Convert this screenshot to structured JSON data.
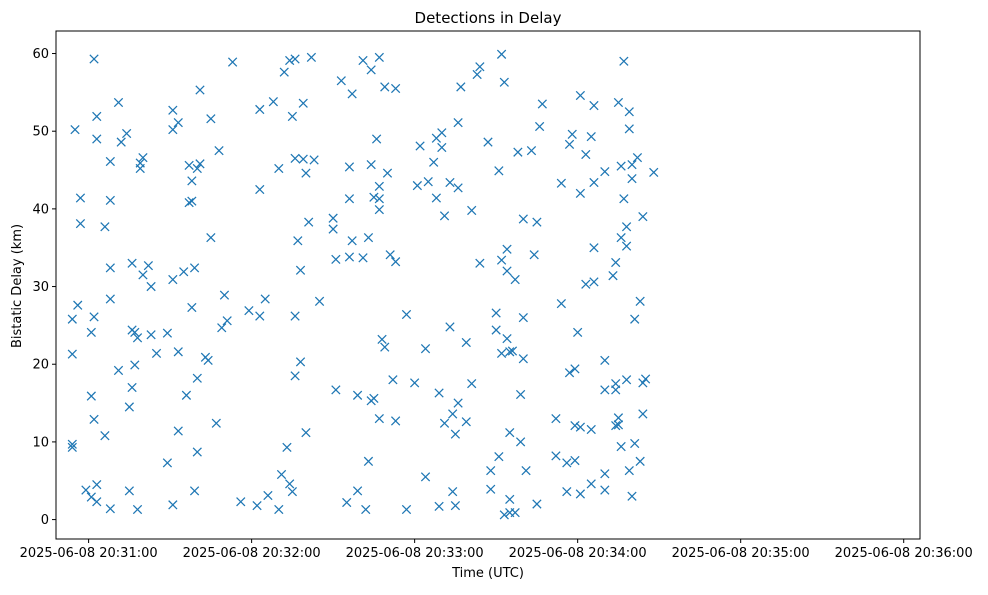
{
  "chart_data": {
    "type": "scatter",
    "title": "Detections in Delay",
    "xlabel": "Time (UTC)",
    "ylabel": "Bistatic Delay (km)",
    "marker": "x",
    "color": "#1f77b4",
    "grid": false,
    "legend": "none",
    "xlim": [
      "2025-06-08 20:30:48",
      "2025-06-08 20:36:06"
    ],
    "ylim": [
      -2.5,
      62.9
    ],
    "x_ticks": [
      "2025-06-08 20:31:00",
      "2025-06-08 20:32:00",
      "2025-06-08 20:33:00",
      "2025-06-08 20:34:00",
      "2025-06-08 20:35:00",
      "2025-06-08 20:36:00"
    ],
    "x_tick_labels": [
      "2025-06-08 20:31:00",
      "2025-06-08 20:32:00",
      "2025-06-08 20:33:00",
      "2025-06-08 20:34:00",
      "2025-06-08 20:35:00",
      "2025-06-08 20:36:00"
    ],
    "y_ticks": [
      0,
      10,
      20,
      30,
      40,
      50,
      60
    ],
    "points": [
      [
        "2025-06-08 20:30:54",
        25.8
      ],
      [
        "2025-06-08 20:30:54",
        21.3
      ],
      [
        "2025-06-08 20:30:54",
        9.7
      ],
      [
        "2025-06-08 20:30:54",
        9.3
      ],
      [
        "2025-06-08 20:30:55",
        50.2
      ],
      [
        "2025-06-08 20:30:56",
        27.6
      ],
      [
        "2025-06-08 20:30:57",
        38.1
      ],
      [
        "2025-06-08 20:30:57",
        41.4
      ],
      [
        "2025-06-08 20:30:59",
        3.8
      ],
      [
        "2025-06-08 20:31:01",
        2.9
      ],
      [
        "2025-06-08 20:31:02",
        59.3
      ],
      [
        "2025-06-08 20:31:01",
        24.1
      ],
      [
        "2025-06-08 20:31:01",
        15.9
      ],
      [
        "2025-06-08 20:31:02",
        26.1
      ],
      [
        "2025-06-08 20:31:02",
        12.9
      ],
      [
        "2025-06-08 20:31:03",
        51.9
      ],
      [
        "2025-06-08 20:31:03",
        49.0
      ],
      [
        "2025-06-08 20:31:03",
        4.5
      ],
      [
        "2025-06-08 20:31:03",
        2.3
      ],
      [
        "2025-06-08 20:31:06",
        37.7
      ],
      [
        "2025-06-08 20:31:06",
        10.8
      ],
      [
        "2025-06-08 20:31:08",
        32.4
      ],
      [
        "2025-06-08 20:31:08",
        28.4
      ],
      [
        "2025-06-08 20:31:08",
        1.4
      ],
      [
        "2025-06-08 20:31:08",
        46.1
      ],
      [
        "2025-06-08 20:31:08",
        41.1
      ],
      [
        "2025-06-08 20:31:11",
        53.7
      ],
      [
        "2025-06-08 20:31:11",
        19.2
      ],
      [
        "2025-06-08 20:31:12",
        48.6
      ],
      [
        "2025-06-08 20:31:14",
        49.7
      ],
      [
        "2025-06-08 20:31:15",
        14.5
      ],
      [
        "2025-06-08 20:31:15",
        3.7
      ],
      [
        "2025-06-08 20:31:16",
        33.0
      ],
      [
        "2025-06-08 20:31:16",
        24.4
      ],
      [
        "2025-06-08 20:31:16",
        17.0
      ],
      [
        "2025-06-08 20:31:17",
        19.9
      ],
      [
        "2025-06-08 20:31:17",
        24.1
      ],
      [
        "2025-06-08 20:31:18",
        23.4
      ],
      [
        "2025-06-08 20:31:18",
        1.3
      ],
      [
        "2025-06-08 20:31:19",
        45.9
      ],
      [
        "2025-06-08 20:31:19",
        45.2
      ],
      [
        "2025-06-08 20:31:20",
        46.6
      ],
      [
        "2025-06-08 20:31:20",
        31.5
      ],
      [
        "2025-06-08 20:31:22",
        32.7
      ],
      [
        "2025-06-08 20:31:23",
        30.0
      ],
      [
        "2025-06-08 20:31:23",
        23.8
      ],
      [
        "2025-06-08 20:31:25",
        21.4
      ],
      [
        "2025-06-08 20:31:29",
        7.3
      ],
      [
        "2025-06-08 20:31:29",
        24.0
      ],
      [
        "2025-06-08 20:31:31",
        1.9
      ],
      [
        "2025-06-08 20:31:31",
        30.9
      ],
      [
        "2025-06-08 20:31:31",
        50.2
      ],
      [
        "2025-06-08 20:31:31",
        52.7
      ],
      [
        "2025-06-08 20:31:33",
        51.1
      ],
      [
        "2025-06-08 20:31:33",
        21.6
      ],
      [
        "2025-06-08 20:31:33",
        11.4
      ],
      [
        "2025-06-08 20:31:35",
        31.9
      ],
      [
        "2025-06-08 20:31:36",
        16.0
      ],
      [
        "2025-06-08 20:31:37",
        40.8
      ],
      [
        "2025-06-08 20:31:37",
        45.6
      ],
      [
        "2025-06-08 20:31:38",
        43.6
      ],
      [
        "2025-06-08 20:31:38",
        41.0
      ],
      [
        "2025-06-08 20:31:38",
        27.3
      ],
      [
        "2025-06-08 20:31:39",
        32.4
      ],
      [
        "2025-06-08 20:31:39",
        3.7
      ],
      [
        "2025-06-08 20:31:40",
        45.2
      ],
      [
        "2025-06-08 20:31:40",
        18.2
      ],
      [
        "2025-06-08 20:31:40",
        8.7
      ],
      [
        "2025-06-08 20:31:41",
        45.8
      ],
      [
        "2025-06-08 20:31:41",
        55.3
      ],
      [
        "2025-06-08 20:31:43",
        20.9
      ],
      [
        "2025-06-08 20:31:44",
        20.5
      ],
      [
        "2025-06-08 20:31:45",
        51.6
      ],
      [
        "2025-06-08 20:31:45",
        36.3
      ],
      [
        "2025-06-08 20:31:47",
        12.4
      ],
      [
        "2025-06-08 20:31:48",
        47.5
      ],
      [
        "2025-06-08 20:31:49",
        24.7
      ],
      [
        "2025-06-08 20:31:50",
        28.9
      ],
      [
        "2025-06-08 20:31:51",
        25.6
      ],
      [
        "2025-06-08 20:31:53",
        58.9
      ],
      [
        "2025-06-08 20:31:56",
        2.3
      ],
      [
        "2025-06-08 20:31:59",
        26.9
      ],
      [
        "2025-06-08 20:32:02",
        1.8
      ],
      [
        "2025-06-08 20:32:03",
        52.8
      ],
      [
        "2025-06-08 20:32:03",
        42.5
      ],
      [
        "2025-06-08 20:32:03",
        26.2
      ],
      [
        "2025-06-08 20:32:05",
        28.4
      ],
      [
        "2025-06-08 20:32:06",
        3.1
      ],
      [
        "2025-06-08 20:32:08",
        53.8
      ],
      [
        "2025-06-08 20:32:10",
        45.2
      ],
      [
        "2025-06-08 20:32:10",
        1.3
      ],
      [
        "2025-06-08 20:32:11",
        5.8
      ],
      [
        "2025-06-08 20:32:12",
        57.6
      ],
      [
        "2025-06-08 20:32:13",
        9.3
      ],
      [
        "2025-06-08 20:32:14",
        59.1
      ],
      [
        "2025-06-08 20:32:14",
        4.6
      ],
      [
        "2025-06-08 20:32:15",
        51.9
      ],
      [
        "2025-06-08 20:32:15",
        3.6
      ],
      [
        "2025-06-08 20:32:16",
        59.3
      ],
      [
        "2025-06-08 20:32:16",
        46.5
      ],
      [
        "2025-06-08 20:32:16",
        26.2
      ],
      [
        "2025-06-08 20:32:16",
        18.5
      ],
      [
        "2025-06-08 20:32:17",
        35.9
      ],
      [
        "2025-06-08 20:32:18",
        32.1
      ],
      [
        "2025-06-08 20:32:18",
        20.3
      ],
      [
        "2025-06-08 20:32:19",
        53.6
      ],
      [
        "2025-06-08 20:32:19",
        46.4
      ],
      [
        "2025-06-08 20:32:20",
        44.6
      ],
      [
        "2025-06-08 20:32:20",
        11.2
      ],
      [
        "2025-06-08 20:32:21",
        38.3
      ],
      [
        "2025-06-08 20:32:22",
        59.5
      ],
      [
        "2025-06-08 20:32:23",
        46.3
      ],
      [
        "2025-06-08 20:32:25",
        28.1
      ],
      [
        "2025-06-08 20:32:30",
        38.8
      ],
      [
        "2025-06-08 20:32:30",
        37.4
      ],
      [
        "2025-06-08 20:32:31",
        33.5
      ],
      [
        "2025-06-08 20:32:31",
        16.7
      ],
      [
        "2025-06-08 20:32:33",
        56.5
      ],
      [
        "2025-06-08 20:32:35",
        2.2
      ],
      [
        "2025-06-08 20:32:36",
        33.8
      ],
      [
        "2025-06-08 20:32:36",
        45.4
      ],
      [
        "2025-06-08 20:32:36",
        41.3
      ],
      [
        "2025-06-08 20:32:37",
        35.9
      ],
      [
        "2025-06-08 20:32:37",
        54.8
      ],
      [
        "2025-06-08 20:32:39",
        16.0
      ],
      [
        "2025-06-08 20:32:39",
        3.7
      ],
      [
        "2025-06-08 20:32:41",
        59.1
      ],
      [
        "2025-06-08 20:32:41",
        33.7
      ],
      [
        "2025-06-08 20:32:42",
        1.3
      ],
      [
        "2025-06-08 20:32:43",
        36.3
      ],
      [
        "2025-06-08 20:32:43",
        7.5
      ],
      [
        "2025-06-08 20:32:44",
        57.9
      ],
      [
        "2025-06-08 20:32:44",
        45.7
      ],
      [
        "2025-06-08 20:32:44",
        15.3
      ],
      [
        "2025-06-08 20:32:45",
        15.6
      ],
      [
        "2025-06-08 20:32:45",
        41.5
      ],
      [
        "2025-06-08 20:32:46",
        49.0
      ],
      [
        "2025-06-08 20:32:47",
        59.5
      ],
      [
        "2025-06-08 20:32:47",
        42.9
      ],
      [
        "2025-06-08 20:32:47",
        41.3
      ],
      [
        "2025-06-08 20:32:47",
        39.9
      ],
      [
        "2025-06-08 20:32:47",
        13.0
      ],
      [
        "2025-06-08 20:32:48",
        23.2
      ],
      [
        "2025-06-08 20:32:49",
        55.7
      ],
      [
        "2025-06-08 20:32:50",
        44.6
      ],
      [
        "2025-06-08 20:32:49",
        22.2
      ],
      [
        "2025-06-08 20:32:51",
        34.1
      ],
      [
        "2025-06-08 20:32:52",
        18.0
      ],
      [
        "2025-06-08 20:32:53",
        55.5
      ],
      [
        "2025-06-08 20:32:53",
        33.2
      ],
      [
        "2025-06-08 20:32:53",
        12.7
      ],
      [
        "2025-06-08 20:32:57",
        26.4
      ],
      [
        "2025-06-08 20:32:57",
        1.3
      ],
      [
        "2025-06-08 20:33:00",
        17.6
      ],
      [
        "2025-06-08 20:33:01",
        43.0
      ],
      [
        "2025-06-08 20:33:02",
        48.1
      ],
      [
        "2025-06-08 20:33:04",
        22.0
      ],
      [
        "2025-06-08 20:33:04",
        5.5
      ],
      [
        "2025-06-08 20:33:05",
        43.5
      ],
      [
        "2025-06-08 20:33:07",
        46.0
      ],
      [
        "2025-06-08 20:33:08",
        49.1
      ],
      [
        "2025-06-08 20:33:08",
        41.4
      ],
      [
        "2025-06-08 20:33:09",
        16.3
      ],
      [
        "2025-06-08 20:33:09",
        1.7
      ],
      [
        "2025-06-08 20:33:10",
        49.8
      ],
      [
        "2025-06-08 20:33:10",
        47.9
      ],
      [
        "2025-06-08 20:33:11",
        39.1
      ],
      [
        "2025-06-08 20:33:11",
        12.4
      ],
      [
        "2025-06-08 20:33:13",
        43.4
      ],
      [
        "2025-06-08 20:33:13",
        24.8
      ],
      [
        "2025-06-08 20:33:14",
        13.6
      ],
      [
        "2025-06-08 20:33:14",
        3.6
      ],
      [
        "2025-06-08 20:33:15",
        11.0
      ],
      [
        "2025-06-08 20:33:16",
        51.1
      ],
      [
        "2025-06-08 20:33:16",
        42.7
      ],
      [
        "2025-06-08 20:33:16",
        15.0
      ],
      [
        "2025-06-08 20:33:15",
        1.8
      ],
      [
        "2025-06-08 20:33:17",
        55.7
      ],
      [
        "2025-06-08 20:33:19",
        22.8
      ],
      [
        "2025-06-08 20:33:19",
        12.6
      ],
      [
        "2025-06-08 20:33:21",
        39.8
      ],
      [
        "2025-06-08 20:33:21",
        17.5
      ],
      [
        "2025-06-08 20:33:23",
        57.3
      ],
      [
        "2025-06-08 20:33:24",
        58.3
      ],
      [
        "2025-06-08 20:33:24",
        33.0
      ],
      [
        "2025-06-08 20:33:27",
        48.6
      ],
      [
        "2025-06-08 20:33:28",
        6.3
      ],
      [
        "2025-06-08 20:33:28",
        3.9
      ],
      [
        "2025-06-08 20:33:30",
        26.6
      ],
      [
        "2025-06-08 20:33:30",
        24.4
      ],
      [
        "2025-06-08 20:33:31",
        8.1
      ],
      [
        "2025-06-08 20:33:31",
        44.9
      ],
      [
        "2025-06-08 20:33:32",
        59.9
      ],
      [
        "2025-06-08 20:33:32",
        33.4
      ],
      [
        "2025-06-08 20:33:32",
        21.4
      ],
      [
        "2025-06-08 20:33:33",
        56.3
      ],
      [
        "2025-06-08 20:33:33",
        0.6
      ],
      [
        "2025-06-08 20:33:34",
        34.8
      ],
      [
        "2025-06-08 20:33:34",
        32.0
      ],
      [
        "2025-06-08 20:33:34",
        23.3
      ],
      [
        "2025-06-08 20:33:35",
        21.6
      ],
      [
        "2025-06-08 20:33:35",
        11.2
      ],
      [
        "2025-06-08 20:33:35",
        2.6
      ],
      [
        "2025-06-08 20:33:35",
        0.9
      ],
      [
        "2025-06-08 20:33:36",
        21.7
      ],
      [
        "2025-06-08 20:33:37",
        30.9
      ],
      [
        "2025-06-08 20:33:37",
        0.9
      ],
      [
        "2025-06-08 20:33:38",
        47.3
      ],
      [
        "2025-06-08 20:33:39",
        16.1
      ],
      [
        "2025-06-08 20:33:39",
        10.0
      ],
      [
        "2025-06-08 20:33:40",
        38.7
      ],
      [
        "2025-06-08 20:33:40",
        26.0
      ],
      [
        "2025-06-08 20:33:40",
        20.7
      ],
      [
        "2025-06-08 20:33:41",
        6.3
      ],
      [
        "2025-06-08 20:33:43",
        47.5
      ],
      [
        "2025-06-08 20:33:44",
        34.1
      ],
      [
        "2025-06-08 20:33:45",
        2.0
      ],
      [
        "2025-06-08 20:33:45",
        38.3
      ],
      [
        "2025-06-08 20:33:46",
        50.6
      ],
      [
        "2025-06-08 20:33:47",
        53.5
      ],
      [
        "2025-06-08 20:33:52",
        13.0
      ],
      [
        "2025-06-08 20:33:52",
        8.2
      ],
      [
        "2025-06-08 20:33:54",
        43.3
      ],
      [
        "2025-06-08 20:33:54",
        27.8
      ],
      [
        "2025-06-08 20:33:56",
        7.3
      ],
      [
        "2025-06-08 20:33:56",
        3.6
      ],
      [
        "2025-06-08 20:33:57",
        48.3
      ],
      [
        "2025-06-08 20:33:57",
        18.9
      ],
      [
        "2025-06-08 20:33:58",
        49.6
      ],
      [
        "2025-06-08 20:33:59",
        19.4
      ],
      [
        "2025-06-08 20:33:59",
        12.1
      ],
      [
        "2025-06-08 20:33:59",
        7.6
      ],
      [
        "2025-06-08 20:34:00",
        24.1
      ],
      [
        "2025-06-08 20:34:01",
        42.0
      ],
      [
        "2025-06-08 20:34:01",
        54.6
      ],
      [
        "2025-06-08 20:34:01",
        11.9
      ],
      [
        "2025-06-08 20:34:01",
        3.3
      ],
      [
        "2025-06-08 20:34:03",
        47.0
      ],
      [
        "2025-06-08 20:34:03",
        30.3
      ],
      [
        "2025-06-08 20:34:05",
        49.3
      ],
      [
        "2025-06-08 20:34:05",
        11.6
      ],
      [
        "2025-06-08 20:34:05",
        4.6
      ],
      [
        "2025-06-08 20:34:06",
        53.3
      ],
      [
        "2025-06-08 20:34:06",
        43.4
      ],
      [
        "2025-06-08 20:34:06",
        35.0
      ],
      [
        "2025-06-08 20:34:06",
        30.6
      ],
      [
        "2025-06-08 20:34:10",
        44.8
      ],
      [
        "2025-06-08 20:34:10",
        20.5
      ],
      [
        "2025-06-08 20:34:10",
        16.7
      ],
      [
        "2025-06-08 20:34:10",
        5.9
      ],
      [
        "2025-06-08 20:34:10",
        3.8
      ],
      [
        "2025-06-08 20:34:13",
        31.4
      ],
      [
        "2025-06-08 20:34:14",
        33.1
      ],
      [
        "2025-06-08 20:34:14",
        17.5
      ],
      [
        "2025-06-08 20:34:14",
        16.7
      ],
      [
        "2025-06-08 20:34:15",
        13.1
      ],
      [
        "2025-06-08 20:34:14",
        12.1
      ],
      [
        "2025-06-08 20:34:15",
        12.2
      ],
      [
        "2025-06-08 20:34:15",
        53.7
      ],
      [
        "2025-06-08 20:34:16",
        36.3
      ],
      [
        "2025-06-08 20:34:16",
        9.4
      ],
      [
        "2025-06-08 20:34:16",
        45.5
      ],
      [
        "2025-06-08 20:34:17",
        41.3
      ],
      [
        "2025-06-08 20:34:17",
        59.0
      ],
      [
        "2025-06-08 20:34:18",
        37.7
      ],
      [
        "2025-06-08 20:34:18",
        35.2
      ],
      [
        "2025-06-08 20:34:18",
        18.0
      ],
      [
        "2025-06-08 20:34:19",
        6.3
      ],
      [
        "2025-06-08 20:34:19",
        52.5
      ],
      [
        "2025-06-08 20:34:19",
        50.3
      ],
      [
        "2025-06-08 20:34:20",
        45.7
      ],
      [
        "2025-06-08 20:34:20",
        43.9
      ],
      [
        "2025-06-08 20:34:20",
        3.0
      ],
      [
        "2025-06-08 20:34:21",
        25.8
      ],
      [
        "2025-06-08 20:34:21",
        9.8
      ],
      [
        "2025-06-08 20:34:22",
        46.6
      ],
      [
        "2025-06-08 20:34:23",
        28.1
      ],
      [
        "2025-06-08 20:34:23",
        7.5
      ],
      [
        "2025-06-08 20:34:24",
        39.0
      ],
      [
        "2025-06-08 20:34:24",
        13.6
      ],
      [
        "2025-06-08 20:34:24",
        17.6
      ],
      [
        "2025-06-08 20:34:25",
        18.1
      ],
      [
        "2025-06-08 20:34:28",
        44.7
      ]
    ]
  }
}
